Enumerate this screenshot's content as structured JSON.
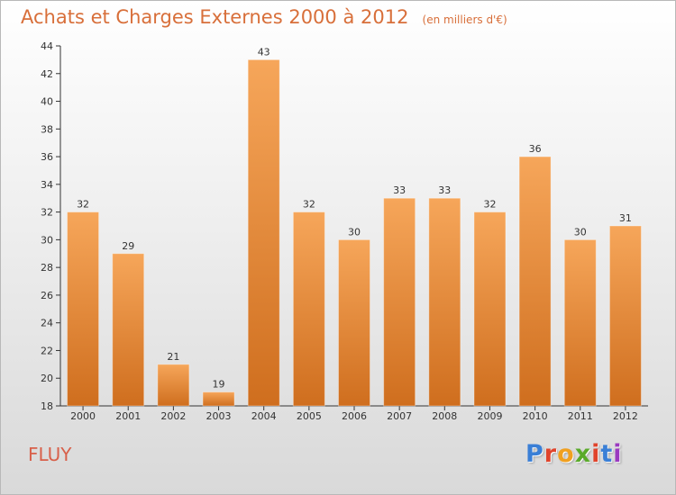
{
  "header": {
    "title": "Achats et Charges Externes 2000 à 2012",
    "unit": "(en milliers d'€)"
  },
  "footer": {
    "commune": "FLUY",
    "brand": "Proxiti"
  },
  "colors": {
    "bar_top": "#f6a65a",
    "bar_bottom": "#cf6e1e",
    "title": "#d86f3a",
    "brand_letters": [
      "#3a7fd6",
      "#e0442c",
      "#f0a020",
      "#5aaa2a",
      "#e0442c",
      "#3a7fd6",
      "#9a3ac0"
    ]
  },
  "chart_data": {
    "type": "bar",
    "title": "Achats et Charges Externes 2000 à 2012",
    "subtitle": "(en milliers d'€)",
    "categories": [
      "2000",
      "2001",
      "2002",
      "2003",
      "2004",
      "2005",
      "2006",
      "2007",
      "2008",
      "2009",
      "2010",
      "2011",
      "2012"
    ],
    "values": [
      32,
      29,
      21,
      19,
      43,
      32,
      30,
      33,
      33,
      32,
      36,
      30,
      31
    ],
    "ylim": [
      18,
      44
    ],
    "yticks": [
      18,
      20,
      22,
      24,
      26,
      28,
      30,
      32,
      34,
      36,
      38,
      40,
      42,
      44
    ],
    "grid": false,
    "xlabel": "",
    "ylabel": ""
  }
}
